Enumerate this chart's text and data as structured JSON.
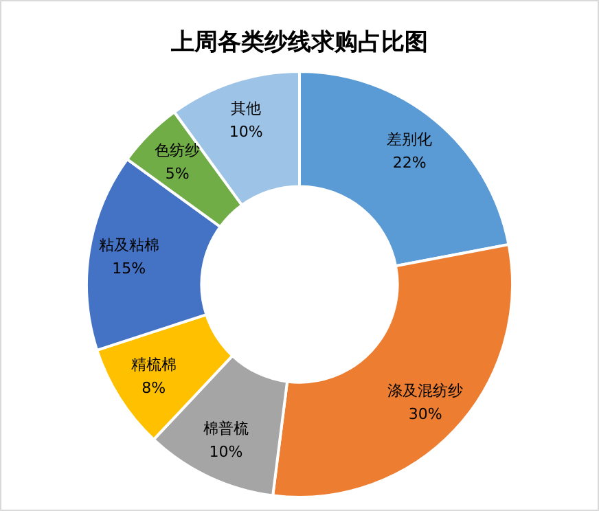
{
  "chart_data": {
    "type": "donut",
    "title": "上周各类纱线求购占比图",
    "categories": [
      "差别化",
      "涤及混纺纱",
      "棉普梳",
      "精梳棉",
      "粘及粘棉",
      "色纺纱",
      "其他"
    ],
    "values": [
      22,
      30,
      10,
      8,
      15,
      5,
      10
    ],
    "value_labels": [
      "22%",
      "30%",
      "10%",
      "8%",
      "15%",
      "5%",
      "10%"
    ],
    "colors": [
      "#5b9bd5",
      "#ed7d31",
      "#a5a5a5",
      "#ffc000",
      "#4472c4",
      "#70ad47",
      "#9dc3e6"
    ],
    "legend": false
  }
}
